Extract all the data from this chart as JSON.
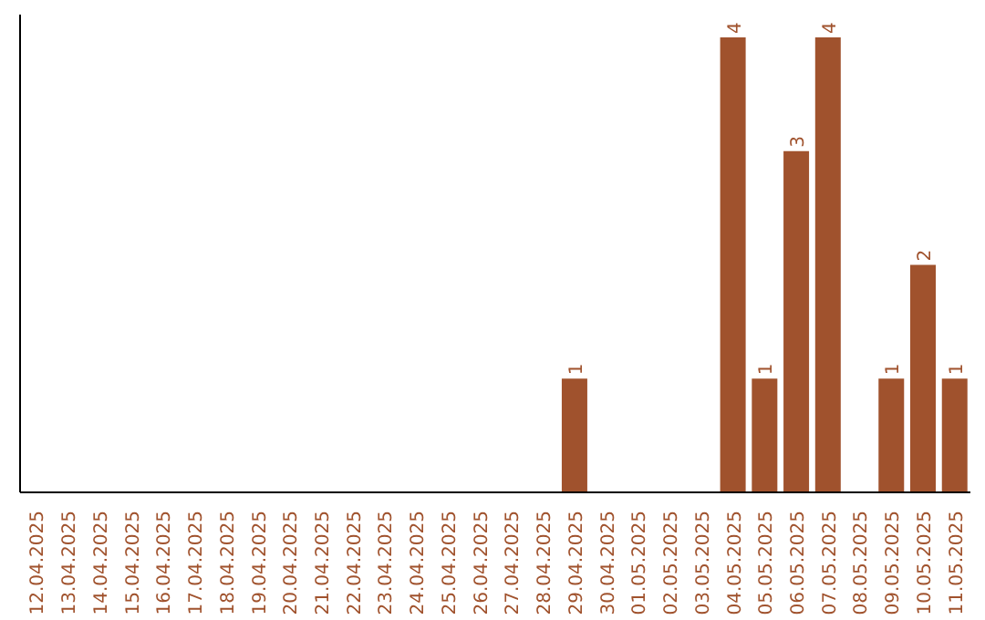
{
  "chart_data": {
    "type": "bar",
    "relative": false,
    "categories": [
      "12.04.2025",
      "13.04.2025",
      "14.04.2025",
      "15.04.2025",
      "16.04.2025",
      "17.04.2025",
      "18.04.2025",
      "19.04.2025",
      "20.04.2025",
      "21.04.2025",
      "22.04.2025",
      "23.04.2025",
      "24.04.2025",
      "25.04.2025",
      "26.04.2025",
      "27.04.2025",
      "28.04.2025",
      "29.04.2025",
      "30.04.2025",
      "01.05.2025",
      "02.05.2025",
      "03.05.2025",
      "04.05.2025",
      "05.05.2025",
      "06.05.2025",
      "07.05.2025",
      "08.05.2025",
      "09.05.2025",
      "10.05.2025",
      "11.05.2025"
    ],
    "values": [
      null,
      null,
      null,
      null,
      null,
      null,
      null,
      null,
      null,
      null,
      null,
      null,
      null,
      null,
      null,
      null,
      null,
      1,
      null,
      null,
      null,
      null,
      4,
      1,
      3,
      4,
      null,
      1,
      2,
      1
    ],
    "data_labels": true,
    "color": "#a0522d",
    "grid": false,
    "legend": false,
    "tick_labels": "x"
  }
}
